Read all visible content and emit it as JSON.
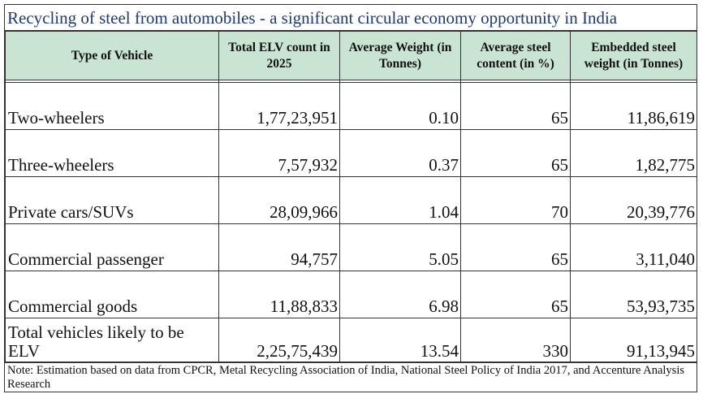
{
  "title": "Recycling of steel from automobiles - a significant circular economy opportunity in India",
  "headers": [
    "Type of Vehicle",
    "Total ELV count in 2025",
    "Average Weight (in Tonnes)",
    "Average steel content (in %)",
    "Embedded steel weight (in Tonnes)"
  ],
  "rows": [
    {
      "type": "Two-wheelers",
      "count": "1,77,23,951",
      "weight": "0.10",
      "steel_pct": "65",
      "embedded": "11,86,619"
    },
    {
      "type": "Three-wheelers",
      "count": "7,57,932",
      "weight": "0.37",
      "steel_pct": "65",
      "embedded": "1,82,775"
    },
    {
      "type": "Private cars/SUVs",
      "count": "28,09,966",
      "weight": "1.04",
      "steel_pct": "70",
      "embedded": "20,39,776"
    },
    {
      "type": "Commercial passenger",
      "count": "94,757",
      "weight": "5.05",
      "steel_pct": "65",
      "embedded": "3,11,040"
    },
    {
      "type": "Commercial goods",
      "count": "11,88,833",
      "weight": "6.98",
      "steel_pct": "65",
      "embedded": "53,93,735"
    }
  ],
  "total": {
    "type": "Total vehicles likely to be ELV",
    "count": "2,25,75,439",
    "weight": "13.54",
    "steel_pct": "330",
    "embedded": "91,13,945"
  },
  "note": "Note: Estimation based on data from CPCR, Metal Recycling Association of India, National Steel Policy of India 2017, and Accenture Analysis Research",
  "colors": {
    "title_text": "#1f3a6e",
    "header_bg": "#c9e4d3",
    "border": "#333333"
  }
}
